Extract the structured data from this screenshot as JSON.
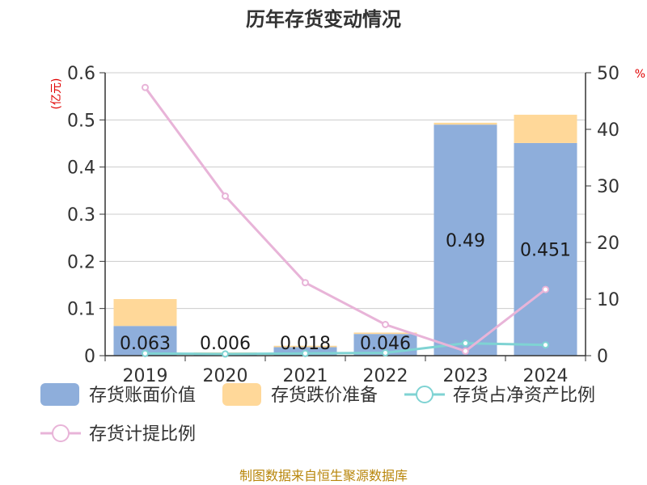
{
  "chart_data": {
    "type": "bar",
    "title": "历年存货变动情况",
    "categories": [
      "2019",
      "2020",
      "2021",
      "2022",
      "2023",
      "2024"
    ],
    "left_axis": {
      "unit": "(亿元)",
      "ylim": [
        0,
        0.6
      ],
      "ticks": [
        "0",
        "0.1",
        "0.2",
        "0.3",
        "0.4",
        "0.5",
        "0.6"
      ]
    },
    "right_axis": {
      "unit": "%",
      "ylim": [
        0,
        50
      ],
      "ticks": [
        "0",
        "10",
        "20",
        "30",
        "40",
        "50"
      ]
    },
    "series": [
      {
        "name": "存货账面价值",
        "kind": "bar",
        "axis": "left",
        "color": "#8eaedb",
        "values": [
          0.063,
          0.006,
          0.018,
          0.046,
          0.49,
          0.451
        ],
        "labels": [
          "0.063",
          "0.006",
          "0.018",
          "0.046",
          "0.49",
          "0.451"
        ]
      },
      {
        "name": "存货跌价准备",
        "kind": "bar",
        "axis": "left",
        "color": "#ffd899",
        "values": [
          0.057,
          0.001,
          0.003,
          0.003,
          0.004,
          0.06
        ]
      },
      {
        "name": "存货占净资产比例",
        "kind": "line",
        "axis": "right",
        "color": "#7fd3d3",
        "values": [
          0.4,
          0.3,
          0.4,
          0.5,
          2.2,
          1.9
        ]
      },
      {
        "name": "存货计提比例",
        "kind": "line",
        "axis": "right",
        "color": "#e8b4d8",
        "values": [
          47.4,
          28.2,
          12.9,
          5.5,
          0.8,
          11.7
        ]
      }
    ],
    "grid": true,
    "legend_position": "bottom"
  },
  "source_text": "制图数据来自恒生聚源数据库"
}
